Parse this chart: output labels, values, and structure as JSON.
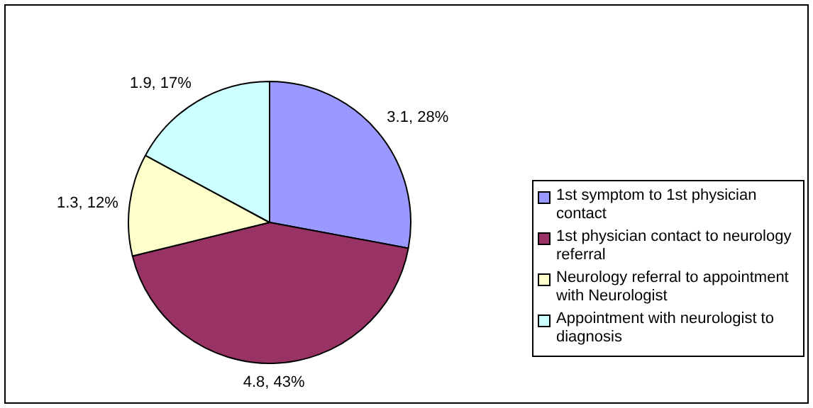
{
  "chart_data": {
    "type": "pie",
    "categories": [
      "1st symptom to 1st physician contact",
      "1st physician contact to neurology referral",
      "Neurology referral to appointment with Neurologist",
      "Appointment with neurologist to diagnosis"
    ],
    "values": [
      3.1,
      4.8,
      1.3,
      1.9
    ],
    "colors": [
      "#9999ff",
      "#993366",
      "#ffffcc",
      "#ccffff"
    ],
    "value_labels": [
      "3.1, 28%",
      "4.8, 43%",
      "1.3, 12%",
      "1.9, 17%"
    ],
    "legend": "right"
  }
}
